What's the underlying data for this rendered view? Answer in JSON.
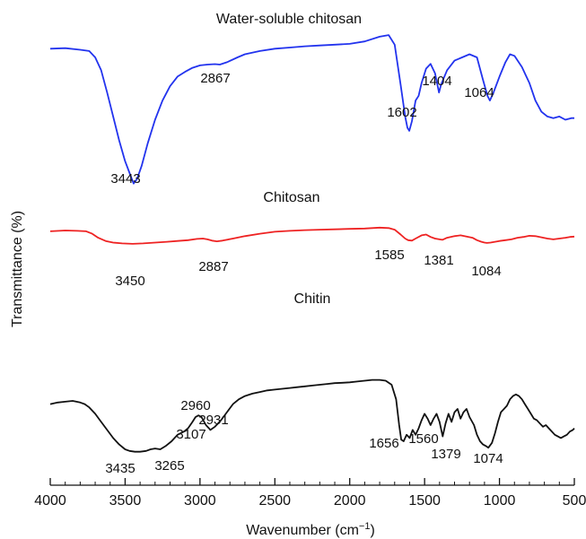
{
  "chart_data": {
    "type": "line",
    "title": "",
    "xlabel": "Wavenumber (cm",
    "xlabel_sup": "−1",
    "xlabel_end": ")",
    "ylabel": "Transmittance (%)",
    "xlim": [
      4000,
      500
    ],
    "x_reversed": true,
    "grid": false,
    "legend": "none",
    "xticks": [
      4000,
      3500,
      3000,
      2500,
      2000,
      1500,
      1000,
      500
    ],
    "series": [
      {
        "name": "Water-soluble chitosan",
        "color": "#2233ee",
        "points": [
          [
            4000,
            0.875
          ],
          [
            3900,
            0.878
          ],
          [
            3800,
            0.868
          ],
          [
            3740,
            0.86
          ],
          [
            3700,
            0.82
          ],
          [
            3660,
            0.74
          ],
          [
            3620,
            0.6
          ],
          [
            3580,
            0.45
          ],
          [
            3540,
            0.3
          ],
          [
            3500,
            0.17
          ],
          [
            3460,
            0.07
          ],
          [
            3443,
            0.03
          ],
          [
            3420,
            0.06
          ],
          [
            3390,
            0.14
          ],
          [
            3350,
            0.28
          ],
          [
            3300,
            0.43
          ],
          [
            3250,
            0.55
          ],
          [
            3200,
            0.64
          ],
          [
            3150,
            0.7
          ],
          [
            3100,
            0.73
          ],
          [
            3050,
            0.755
          ],
          [
            3000,
            0.77
          ],
          [
            2950,
            0.775
          ],
          [
            2900,
            0.778
          ],
          [
            2867,
            0.775
          ],
          [
            2820,
            0.79
          ],
          [
            2750,
            0.82
          ],
          [
            2700,
            0.84
          ],
          [
            2600,
            0.86
          ],
          [
            2500,
            0.875
          ],
          [
            2400,
            0.882
          ],
          [
            2300,
            0.89
          ],
          [
            2200,
            0.895
          ],
          [
            2100,
            0.9
          ],
          [
            2000,
            0.905
          ],
          [
            1900,
            0.92
          ],
          [
            1800,
            0.95
          ],
          [
            1740,
            0.96
          ],
          [
            1700,
            0.9
          ],
          [
            1660,
            0.65
          ],
          [
            1630,
            0.45
          ],
          [
            1615,
            0.38
          ],
          [
            1602,
            0.36
          ],
          [
            1585,
            0.42
          ],
          [
            1560,
            0.55
          ],
          [
            1540,
            0.58
          ],
          [
            1520,
            0.66
          ],
          [
            1490,
            0.75
          ],
          [
            1460,
            0.78
          ],
          [
            1430,
            0.72
          ],
          [
            1404,
            0.6
          ],
          [
            1390,
            0.65
          ],
          [
            1350,
            0.74
          ],
          [
            1300,
            0.8
          ],
          [
            1250,
            0.82
          ],
          [
            1200,
            0.84
          ],
          [
            1150,
            0.82
          ],
          [
            1110,
            0.68
          ],
          [
            1080,
            0.58
          ],
          [
            1064,
            0.55
          ],
          [
            1040,
            0.6
          ],
          [
            1000,
            0.7
          ],
          [
            960,
            0.79
          ],
          [
            930,
            0.84
          ],
          [
            900,
            0.83
          ],
          [
            850,
            0.76
          ],
          [
            800,
            0.66
          ],
          [
            760,
            0.55
          ],
          [
            720,
            0.48
          ],
          [
            680,
            0.45
          ],
          [
            640,
            0.44
          ],
          [
            600,
            0.45
          ],
          [
            560,
            0.43
          ],
          [
            520,
            0.44
          ],
          [
            500,
            0.44
          ]
        ],
        "annotations": [
          "3443",
          "2867",
          "1602",
          "1404",
          "1064"
        ]
      },
      {
        "name": "Chitosan",
        "color": "#ee2222",
        "points": [
          [
            4000,
            0.69
          ],
          [
            3900,
            0.7
          ],
          [
            3820,
            0.695
          ],
          [
            3760,
            0.69
          ],
          [
            3720,
            0.66
          ],
          [
            3680,
            0.61
          ],
          [
            3630,
            0.57
          ],
          [
            3580,
            0.55
          ],
          [
            3520,
            0.54
          ],
          [
            3450,
            0.535
          ],
          [
            3380,
            0.54
          ],
          [
            3300,
            0.55
          ],
          [
            3220,
            0.56
          ],
          [
            3150,
            0.57
          ],
          [
            3080,
            0.58
          ],
          [
            3020,
            0.595
          ],
          [
            2980,
            0.6
          ],
          [
            2950,
            0.59
          ],
          [
            2920,
            0.575
          ],
          [
            2887,
            0.565
          ],
          [
            2850,
            0.575
          ],
          [
            2780,
            0.6
          ],
          [
            2700,
            0.63
          ],
          [
            2600,
            0.66
          ],
          [
            2500,
            0.685
          ],
          [
            2400,
            0.695
          ],
          [
            2300,
            0.705
          ],
          [
            2200,
            0.71
          ],
          [
            2100,
            0.715
          ],
          [
            2000,
            0.72
          ],
          [
            1900,
            0.725
          ],
          [
            1800,
            0.735
          ],
          [
            1740,
            0.73
          ],
          [
            1700,
            0.71
          ],
          [
            1660,
            0.65
          ],
          [
            1630,
            0.6
          ],
          [
            1610,
            0.58
          ],
          [
            1585,
            0.575
          ],
          [
            1560,
            0.6
          ],
          [
            1520,
            0.64
          ],
          [
            1490,
            0.65
          ],
          [
            1460,
            0.62
          ],
          [
            1430,
            0.6
          ],
          [
            1400,
            0.59
          ],
          [
            1381,
            0.585
          ],
          [
            1350,
            0.61
          ],
          [
            1300,
            0.63
          ],
          [
            1260,
            0.64
          ],
          [
            1220,
            0.625
          ],
          [
            1180,
            0.61
          ],
          [
            1150,
            0.58
          ],
          [
            1120,
            0.56
          ],
          [
            1100,
            0.55
          ],
          [
            1084,
            0.545
          ],
          [
            1060,
            0.55
          ],
          [
            1030,
            0.56
          ],
          [
            1000,
            0.57
          ],
          [
            960,
            0.58
          ],
          [
            920,
            0.59
          ],
          [
            880,
            0.61
          ],
          [
            840,
            0.62
          ],
          [
            800,
            0.635
          ],
          [
            760,
            0.63
          ],
          [
            720,
            0.615
          ],
          [
            680,
            0.6
          ],
          [
            640,
            0.59
          ],
          [
            600,
            0.6
          ],
          [
            560,
            0.61
          ],
          [
            530,
            0.62
          ],
          [
            500,
            0.625
          ]
        ],
        "annotations": [
          "3450",
          "2887",
          "1585",
          "1381",
          "1084"
        ]
      },
      {
        "name": "Chitin",
        "color": "#111111",
        "points": [
          [
            4000,
            0.33
          ],
          [
            3950,
            0.34
          ],
          [
            3900,
            0.345
          ],
          [
            3850,
            0.35
          ],
          [
            3800,
            0.34
          ],
          [
            3770,
            0.33
          ],
          [
            3740,
            0.31
          ],
          [
            3700,
            0.27
          ],
          [
            3660,
            0.22
          ],
          [
            3620,
            0.17
          ],
          [
            3580,
            0.12
          ],
          [
            3540,
            0.08
          ],
          [
            3500,
            0.05
          ],
          [
            3470,
            0.04
          ],
          [
            3435,
            0.035
          ],
          [
            3400,
            0.035
          ],
          [
            3360,
            0.04
          ],
          [
            3330,
            0.05
          ],
          [
            3300,
            0.055
          ],
          [
            3265,
            0.05
          ],
          [
            3230,
            0.07
          ],
          [
            3190,
            0.1
          ],
          [
            3150,
            0.14
          ],
          [
            3107,
            0.16
          ],
          [
            3080,
            0.18
          ],
          [
            3050,
            0.22
          ],
          [
            3030,
            0.25
          ],
          [
            3010,
            0.26
          ],
          [
            2990,
            0.25
          ],
          [
            2960,
            0.2
          ],
          [
            2940,
            0.18
          ],
          [
            2931,
            0.17
          ],
          [
            2900,
            0.19
          ],
          [
            2880,
            0.21
          ],
          [
            2860,
            0.23
          ],
          [
            2820,
            0.28
          ],
          [
            2780,
            0.33
          ],
          [
            2740,
            0.36
          ],
          [
            2700,
            0.38
          ],
          [
            2650,
            0.395
          ],
          [
            2600,
            0.405
          ],
          [
            2550,
            0.415
          ],
          [
            2500,
            0.42
          ],
          [
            2450,
            0.425
          ],
          [
            2400,
            0.43
          ],
          [
            2350,
            0.435
          ],
          [
            2300,
            0.44
          ],
          [
            2250,
            0.445
          ],
          [
            2200,
            0.45
          ],
          [
            2150,
            0.455
          ],
          [
            2100,
            0.46
          ],
          [
            2050,
            0.462
          ],
          [
            2000,
            0.465
          ],
          [
            1950,
            0.47
          ],
          [
            1900,
            0.475
          ],
          [
            1850,
            0.48
          ],
          [
            1800,
            0.48
          ],
          [
            1760,
            0.475
          ],
          [
            1720,
            0.45
          ],
          [
            1690,
            0.36
          ],
          [
            1670,
            0.2
          ],
          [
            1656,
            0.11
          ],
          [
            1640,
            0.1
          ],
          [
            1620,
            0.14
          ],
          [
            1600,
            0.12
          ],
          [
            1580,
            0.17
          ],
          [
            1560,
            0.14
          ],
          [
            1540,
            0.18
          ],
          [
            1520,
            0.23
          ],
          [
            1500,
            0.27
          ],
          [
            1480,
            0.24
          ],
          [
            1460,
            0.2
          ],
          [
            1440,
            0.24
          ],
          [
            1420,
            0.27
          ],
          [
            1400,
            0.22
          ],
          [
            1379,
            0.13
          ],
          [
            1360,
            0.21
          ],
          [
            1340,
            0.27
          ],
          [
            1320,
            0.22
          ],
          [
            1300,
            0.28
          ],
          [
            1280,
            0.3
          ],
          [
            1260,
            0.24
          ],
          [
            1240,
            0.28
          ],
          [
            1220,
            0.3
          ],
          [
            1200,
            0.25
          ],
          [
            1170,
            0.2
          ],
          [
            1150,
            0.14
          ],
          [
            1130,
            0.1
          ],
          [
            1110,
            0.08
          ],
          [
            1090,
            0.07
          ],
          [
            1074,
            0.06
          ],
          [
            1050,
            0.09
          ],
          [
            1030,
            0.15
          ],
          [
            1010,
            0.22
          ],
          [
            990,
            0.28
          ],
          [
            970,
            0.3
          ],
          [
            950,
            0.32
          ],
          [
            930,
            0.36
          ],
          [
            910,
            0.38
          ],
          [
            890,
            0.39
          ],
          [
            870,
            0.38
          ],
          [
            850,
            0.36
          ],
          [
            830,
            0.33
          ],
          [
            810,
            0.3
          ],
          [
            790,
            0.27
          ],
          [
            770,
            0.24
          ],
          [
            750,
            0.23
          ],
          [
            730,
            0.21
          ],
          [
            710,
            0.19
          ],
          [
            690,
            0.2
          ],
          [
            670,
            0.18
          ],
          [
            650,
            0.16
          ],
          [
            630,
            0.14
          ],
          [
            610,
            0.13
          ],
          [
            590,
            0.12
          ],
          [
            570,
            0.13
          ],
          [
            550,
            0.14
          ],
          [
            530,
            0.16
          ],
          [
            510,
            0.17
          ],
          [
            500,
            0.18
          ]
        ],
        "annotations": [
          "3435",
          "3265",
          "3107",
          "2960",
          "2931",
          "1656",
          "1560",
          "1379",
          "1074"
        ]
      }
    ]
  }
}
